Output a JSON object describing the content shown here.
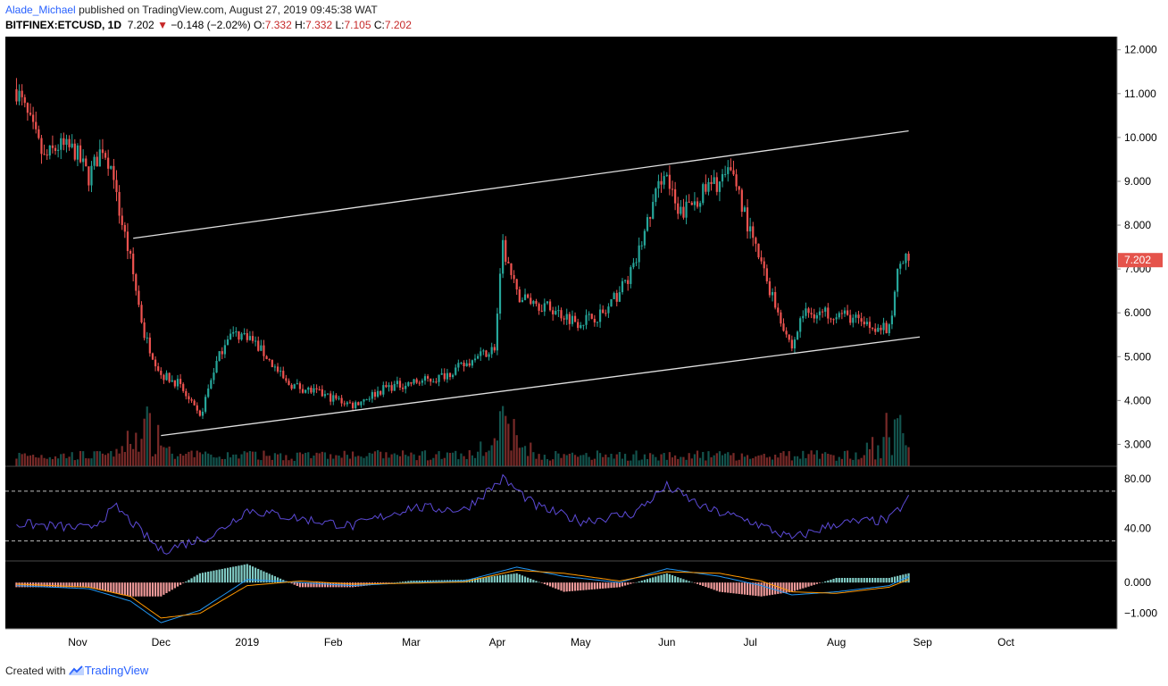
{
  "header": {
    "author": "Alade_Michael",
    "published_text": "published on TradingView.com, August 27, 2019 09:45:38 WAT",
    "symbol": "BITFINEX:ETCUSD, 1D",
    "last": "7.202",
    "change_arrow": "▼",
    "change": "−0.148 (−2.02%)",
    "o_label": "O:",
    "o_value": "7.332",
    "h_label": "H:",
    "h_value": "7.332",
    "l_label": "L:",
    "l_value": "7.105",
    "c_label": "C:",
    "c_value": "7.202"
  },
  "footer": {
    "created_with": "Created with",
    "brand": "TradingView",
    "brand_icon": "tradingview-logo-icon"
  },
  "colors": {
    "background": "#000000",
    "up": "#26a69a",
    "down": "#ef5350",
    "trendline": "#e0e0e0",
    "rsi": "#5c4ad6",
    "macd_line": "#2196f3",
    "signal_line": "#ff9800",
    "axis_text": "#000000",
    "last_price_tag": "#e5534b"
  },
  "chart_data": [
    {
      "type": "candlestick",
      "series": "ETCUSD price (1D)",
      "x": [
        "2018-10-10",
        "2018-10-20",
        "2018-10-25",
        "2018-10-31",
        "2018-11-05",
        "2018-11-10",
        "2018-11-14",
        "2018-11-15",
        "2018-11-20",
        "2018-11-25",
        "2018-12-01",
        "2018-12-07",
        "2018-12-15",
        "2018-12-20",
        "2018-12-25",
        "2019-01-01",
        "2019-01-08",
        "2019-01-15",
        "2019-01-25",
        "2019-02-08",
        "2019-02-20",
        "2019-03-01",
        "2019-03-10",
        "2019-03-20",
        "2019-03-31",
        "2019-04-03",
        "2019-04-08",
        "2019-04-20",
        "2019-04-30",
        "2019-05-10",
        "2019-05-20",
        "2019-05-31",
        "2019-06-05",
        "2019-06-15",
        "2019-06-25",
        "2019-07-01",
        "2019-07-10",
        "2019-07-16",
        "2019-07-20",
        "2019-08-01",
        "2019-08-10",
        "2019-08-20",
        "2019-08-24",
        "2019-08-27"
      ],
      "close": [
        11.1,
        9.5,
        9.8,
        9.7,
        9.1,
        9.8,
        9.2,
        8.6,
        7.2,
        5.5,
        4.6,
        4.4,
        3.6,
        4.7,
        5.5,
        5.5,
        5.0,
        4.4,
        4.2,
        3.9,
        4.3,
        4.4,
        4.5,
        4.8,
        5.2,
        7.5,
        6.4,
        6.1,
        5.8,
        6.0,
        7.0,
        9.3,
        8.2,
        8.8,
        9.2,
        7.8,
        6.2,
        5.2,
        6.0,
        6.0,
        5.8,
        5.6,
        7.3,
        7.2
      ],
      "ylim": [
        2.5,
        12.3
      ],
      "y_ticks": [
        "12.000",
        "11.000",
        "10.000",
        "9.000",
        "8.000",
        "7.000",
        "6.000",
        "5.000",
        "4.000",
        "3.000"
      ],
      "last_price_label": "7.202",
      "x_labels": [
        "Nov",
        "Dec",
        "2019",
        "Feb",
        "Mar",
        "Apr",
        "May",
        "Jun",
        "Jul",
        "Aug",
        "Sep",
        "Oct"
      ],
      "trendlines": [
        {
          "name": "upper-channel",
          "x": [
            "2018-11-21",
            "2019-08-27"
          ],
          "y": [
            7.7,
            10.15
          ]
        },
        {
          "name": "lower-channel",
          "x": [
            "2018-12-01",
            "2019-08-31"
          ],
          "y": [
            3.2,
            5.45
          ]
        }
      ],
      "volume": {
        "approx_peaks": [
          "2018-11-25",
          "2019-04-03",
          "2019-08-22"
        ]
      }
    },
    {
      "type": "line",
      "series": "RSI",
      "x": [
        "2018-10-10",
        "2018-11-05",
        "2018-11-15",
        "2018-12-01",
        "2018-12-20",
        "2019-01-01",
        "2019-01-20",
        "2019-02-08",
        "2019-03-01",
        "2019-03-20",
        "2019-04-03",
        "2019-04-15",
        "2019-05-01",
        "2019-05-20",
        "2019-06-01",
        "2019-06-15",
        "2019-07-01",
        "2019-07-16",
        "2019-08-01",
        "2019-08-20",
        "2019-08-27"
      ],
      "values": [
        44,
        40,
        57,
        22,
        35,
        55,
        48,
        42,
        57,
        55,
        80,
        58,
        46,
        52,
        74,
        56,
        46,
        32,
        44,
        47,
        64
      ],
      "ylim": [
        14,
        90
      ],
      "y_ticks": [
        "80.00",
        "40.00"
      ],
      "levels": [
        70,
        30
      ]
    },
    {
      "type": "line",
      "series": "MACD",
      "x": [
        "2018-10-10",
        "2018-11-05",
        "2018-11-20",
        "2018-12-01",
        "2018-12-15",
        "2019-01-01",
        "2019-01-20",
        "2019-02-08",
        "2019-03-01",
        "2019-03-20",
        "2019-04-08",
        "2019-04-25",
        "2019-05-15",
        "2019-06-01",
        "2019-06-20",
        "2019-07-05",
        "2019-07-16",
        "2019-08-01",
        "2019-08-20",
        "2019-08-27"
      ],
      "values": [
        -0.1,
        -0.2,
        -0.6,
        -1.3,
        -0.9,
        0.1,
        0.0,
        -0.1,
        0.0,
        0.05,
        0.5,
        0.2,
        0.0,
        0.45,
        0.2,
        -0.1,
        -0.4,
        -0.3,
        -0.1,
        0.2
      ],
      "signal": [
        -0.05,
        -0.15,
        -0.45,
        -1.15,
        -1.0,
        -0.1,
        0.05,
        -0.05,
        -0.02,
        0.02,
        0.4,
        0.3,
        0.05,
        0.35,
        0.3,
        0.05,
        -0.3,
        -0.35,
        -0.15,
        0.1
      ],
      "ylim": [
        -1.5,
        0.7
      ],
      "y_ticks": [
        "0.000",
        "−1.000"
      ]
    }
  ]
}
